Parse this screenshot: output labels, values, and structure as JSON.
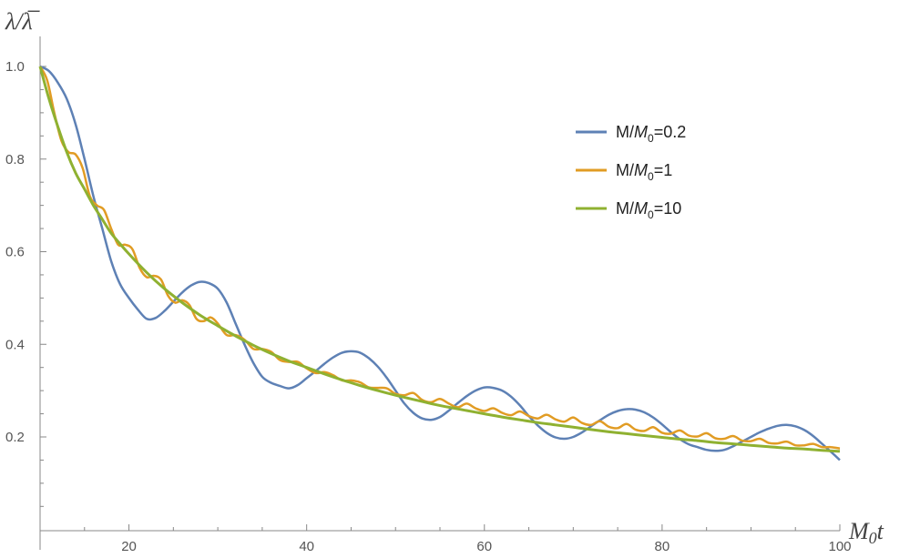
{
  "chart_data": {
    "type": "line",
    "title": "",
    "xlabel_main": "M",
    "xlabel_sub": "0",
    "xlabel_tail": "t",
    "ylabel_num": "λ",
    "ylabel_slash": "/",
    "ylabel_den": "λ̅",
    "xlim": [
      10,
      100
    ],
    "ylim": [
      0,
      1.05
    ],
    "x_ticks": [
      20,
      40,
      60,
      80,
      100
    ],
    "x_tick_labels": [
      "20",
      "40",
      "60",
      "80",
      "100"
    ],
    "y_ticks": [
      0.2,
      0.4,
      0.6,
      0.8,
      1.0
    ],
    "y_tick_labels": [
      "0.2",
      "0.4",
      "0.6",
      "0.8",
      "1.0"
    ],
    "grid": false,
    "legend_position": "top-right",
    "series": [
      {
        "name_prefix": "M/",
        "name_italic": "M",
        "name_sub": "0",
        "name_suffix": "=0.2",
        "color": "#5E81B5",
        "x": [
          10,
          11,
          12,
          13,
          14,
          15,
          16,
          17,
          18,
          19,
          20,
          21,
          22,
          23,
          24,
          25,
          26,
          27,
          28,
          29,
          30,
          31,
          32,
          33,
          34,
          35,
          36,
          37,
          38,
          39,
          40,
          41,
          42,
          43,
          44,
          45,
          46,
          47,
          48,
          49,
          50,
          51,
          52,
          53,
          54,
          55,
          56,
          57,
          58,
          59,
          60,
          61,
          62,
          63,
          64,
          65,
          66,
          67,
          68,
          69,
          70,
          71,
          72,
          73,
          74,
          75,
          76,
          77,
          78,
          79,
          80,
          81,
          82,
          83,
          84,
          85,
          86,
          87,
          88,
          89,
          90,
          91,
          92,
          93,
          94,
          95,
          96,
          97,
          98,
          99,
          100
        ],
        "y": [
          1.0,
          0.99,
          0.965,
          0.93,
          0.875,
          0.8,
          0.72,
          0.65,
          0.58,
          0.53,
          0.5,
          0.475,
          0.455,
          0.457,
          0.472,
          0.492,
          0.512,
          0.527,
          0.535,
          0.532,
          0.52,
          0.49,
          0.445,
          0.4,
          0.36,
          0.33,
          0.317,
          0.31,
          0.305,
          0.312,
          0.327,
          0.342,
          0.358,
          0.372,
          0.382,
          0.385,
          0.382,
          0.37,
          0.352,
          0.328,
          0.3,
          0.272,
          0.252,
          0.24,
          0.237,
          0.243,
          0.257,
          0.273,
          0.288,
          0.3,
          0.307,
          0.306,
          0.3,
          0.287,
          0.268,
          0.245,
          0.225,
          0.209,
          0.199,
          0.196,
          0.2,
          0.21,
          0.223,
          0.236,
          0.248,
          0.256,
          0.26,
          0.259,
          0.253,
          0.242,
          0.227,
          0.21,
          0.195,
          0.184,
          0.178,
          0.172,
          0.17,
          0.172,
          0.18,
          0.19,
          0.2,
          0.21,
          0.218,
          0.224,
          0.226,
          0.223,
          0.215,
          0.202,
          0.185,
          0.168,
          0.15
        ]
      },
      {
        "name_prefix": "M/",
        "name_italic": "M",
        "name_sub": "0",
        "name_suffix": "=1",
        "color": "#E19C24",
        "x": [
          10,
          10.8,
          11.6,
          12.4,
          13.2,
          14.0,
          14.8,
          15.6,
          16.4,
          17.2,
          18.0,
          18.8,
          19.6,
          20.4,
          21.2,
          22.0,
          22.8,
          23.6,
          24.4,
          25.2,
          26.0,
          26.8,
          27.6,
          28.4,
          29.2,
          30.0,
          31.0,
          32.0,
          33.0,
          34.0,
          35.0,
          36.0,
          37.0,
          38.0,
          39.0,
          40.0,
          41.0,
          42.0,
          43.0,
          44.0,
          45.0,
          46.0,
          47.0,
          48.0,
          49.0,
          50.0,
          51.0,
          52.0,
          53.0,
          54.0,
          55.0,
          56.0,
          57.0,
          58.0,
          59.0,
          60.0,
          61.0,
          62.0,
          63.0,
          64.0,
          65.0,
          66.0,
          67.0,
          68.0,
          69.0,
          70.0,
          71.0,
          72.0,
          73.0,
          74.0,
          75.0,
          76.0,
          77.0,
          78.0,
          79.0,
          80.0,
          81.0,
          82.0,
          83.0,
          84.0,
          85.0,
          86.0,
          87.0,
          88.0,
          89.0,
          90.0,
          91.0,
          92.0,
          93.0,
          94.0,
          95.0,
          96.0,
          97.0,
          98.0,
          99.0,
          100.0
        ],
        "y": [
          1.0,
          0.97,
          0.9,
          0.84,
          0.815,
          0.81,
          0.78,
          0.72,
          0.7,
          0.69,
          0.65,
          0.615,
          0.615,
          0.605,
          0.565,
          0.545,
          0.548,
          0.54,
          0.505,
          0.49,
          0.495,
          0.485,
          0.455,
          0.45,
          0.458,
          0.445,
          0.42,
          0.42,
          0.41,
          0.39,
          0.39,
          0.384,
          0.366,
          0.362,
          0.362,
          0.348,
          0.338,
          0.34,
          0.333,
          0.322,
          0.322,
          0.318,
          0.307,
          0.306,
          0.305,
          0.293,
          0.29,
          0.295,
          0.28,
          0.275,
          0.282,
          0.272,
          0.264,
          0.272,
          0.262,
          0.256,
          0.262,
          0.252,
          0.247,
          0.255,
          0.245,
          0.24,
          0.248,
          0.238,
          0.233,
          0.242,
          0.23,
          0.226,
          0.234,
          0.222,
          0.219,
          0.228,
          0.216,
          0.213,
          0.221,
          0.209,
          0.207,
          0.214,
          0.203,
          0.201,
          0.208,
          0.197,
          0.196,
          0.202,
          0.192,
          0.191,
          0.196,
          0.187,
          0.186,
          0.19,
          0.182,
          0.182,
          0.185,
          0.178,
          0.178,
          0.175
        ]
      },
      {
        "name_prefix": "M/",
        "name_italic": "M",
        "name_sub": "0",
        "name_suffix": "=10",
        "color": "#8FB131",
        "x": [
          10,
          11,
          12,
          13,
          14,
          15,
          16,
          17,
          18,
          19,
          20,
          22,
          24,
          26,
          28,
          30,
          32,
          34,
          36,
          38,
          40,
          42,
          44,
          46,
          48,
          50,
          52,
          54,
          56,
          58,
          60,
          62,
          64,
          66,
          68,
          70,
          72,
          74,
          76,
          78,
          80,
          82,
          84,
          86,
          88,
          90,
          92,
          94,
          96,
          98,
          100
        ],
        "y": [
          1.0,
          0.93,
          0.87,
          0.815,
          0.77,
          0.735,
          0.7,
          0.67,
          0.64,
          0.617,
          0.595,
          0.555,
          0.52,
          0.49,
          0.463,
          0.44,
          0.418,
          0.398,
          0.38,
          0.364,
          0.35,
          0.336,
          0.323,
          0.311,
          0.3,
          0.29,
          0.281,
          0.272,
          0.264,
          0.257,
          0.25,
          0.243,
          0.237,
          0.231,
          0.226,
          0.221,
          0.216,
          0.211,
          0.207,
          0.203,
          0.199,
          0.195,
          0.192,
          0.188,
          0.185,
          0.182,
          0.179,
          0.176,
          0.174,
          0.171,
          0.169
        ]
      }
    ]
  }
}
